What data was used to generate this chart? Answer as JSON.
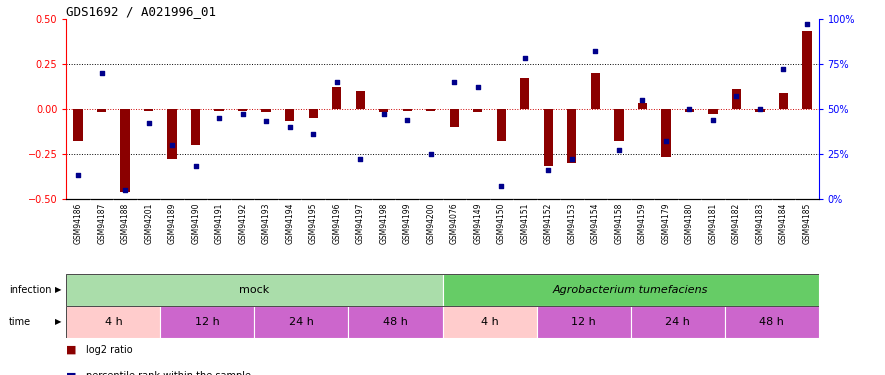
{
  "title": "GDS1692 / A021996_01",
  "samples": [
    "GSM94186",
    "GSM94187",
    "GSM94188",
    "GSM94201",
    "GSM94189",
    "GSM94190",
    "GSM94191",
    "GSM94192",
    "GSM94193",
    "GSM94194",
    "GSM94195",
    "GSM94196",
    "GSM94197",
    "GSM94198",
    "GSM94199",
    "GSM94200",
    "GSM94076",
    "GSM94149",
    "GSM94150",
    "GSM94151",
    "GSM94152",
    "GSM94153",
    "GSM94154",
    "GSM94158",
    "GSM94159",
    "GSM94179",
    "GSM94180",
    "GSM94181",
    "GSM94182",
    "GSM94183",
    "GSM94184",
    "GSM94185"
  ],
  "log2_ratio": [
    -0.18,
    -0.02,
    -0.46,
    -0.01,
    -0.28,
    -0.2,
    -0.01,
    -0.01,
    -0.02,
    -0.07,
    -0.05,
    0.12,
    0.1,
    -0.02,
    -0.01,
    -0.01,
    -0.1,
    -0.02,
    -0.18,
    0.17,
    -0.32,
    -0.3,
    0.2,
    -0.18,
    0.03,
    -0.27,
    -0.02,
    -0.03,
    0.11,
    -0.02,
    0.09,
    0.43
  ],
  "percentile": [
    13,
    70,
    5,
    42,
    30,
    18,
    45,
    47,
    43,
    40,
    36,
    65,
    22,
    47,
    44,
    25,
    65,
    62,
    7,
    78,
    16,
    22,
    82,
    27,
    55,
    32,
    50,
    44,
    57,
    50,
    72,
    97
  ],
  "mock_color": "#aaddaa",
  "agro_color": "#66cc66",
  "time_colors": [
    "#ffcccc",
    "#cc66cc",
    "#cc66cc",
    "#cc66cc",
    "#ffcccc",
    "#cc66cc",
    "#cc66cc",
    "#cc66cc"
  ],
  "time_labels": [
    "4 h",
    "12 h",
    "24 h",
    "48 h",
    "4 h",
    "12 h",
    "24 h",
    "48 h"
  ],
  "time_starts": [
    0,
    4,
    8,
    12,
    16,
    20,
    24,
    28
  ],
  "time_ends": [
    4,
    8,
    12,
    16,
    20,
    24,
    28,
    32
  ],
  "ylim": [
    -0.5,
    0.5
  ],
  "y2lim": [
    0,
    100
  ],
  "bar_color": "#8B0000",
  "dot_color": "#00008B",
  "hline_color": "#cc0000",
  "dotted_levels": [
    0.25,
    -0.25
  ],
  "xtick_bg": "#d0d0d0"
}
